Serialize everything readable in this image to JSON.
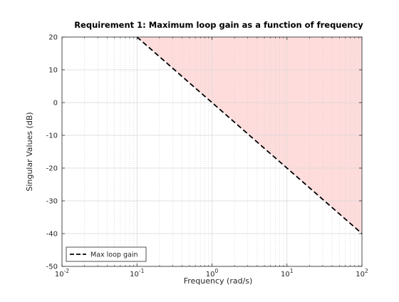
{
  "chart_data": {
    "type": "line",
    "title": "Requirement 1: Maximum loop gain as a function of frequency",
    "xlabel": "Frequency (rad/s)",
    "ylabel": "Singular Values (dB)",
    "xscale": "log",
    "xlim": [
      0.01,
      100
    ],
    "ylim": [
      -50,
      20
    ],
    "xticks": [
      {
        "value": 0.01,
        "base": "10",
        "exp": "-2"
      },
      {
        "value": 0.1,
        "base": "10",
        "exp": "-1"
      },
      {
        "value": 1,
        "base": "10",
        "exp": "0"
      },
      {
        "value": 10,
        "base": "10",
        "exp": "1"
      },
      {
        "value": 100,
        "base": "10",
        "exp": "2"
      }
    ],
    "yticks": [
      20,
      10,
      0,
      -10,
      -20,
      -30,
      -40,
      -50
    ],
    "grid": true,
    "minor_grid": true,
    "legend_position": "bottom-left",
    "series": [
      {
        "name": "Max loop gain",
        "style": "dashed",
        "color": "#000000",
        "x": [
          0.1,
          100
        ],
        "y": [
          20,
          -40
        ]
      }
    ],
    "shaded_region": {
      "description_color": "#ffdcdc",
      "bound_x": [
        0.1,
        100
      ],
      "bound_y": [
        20,
        -40
      ]
    }
  }
}
